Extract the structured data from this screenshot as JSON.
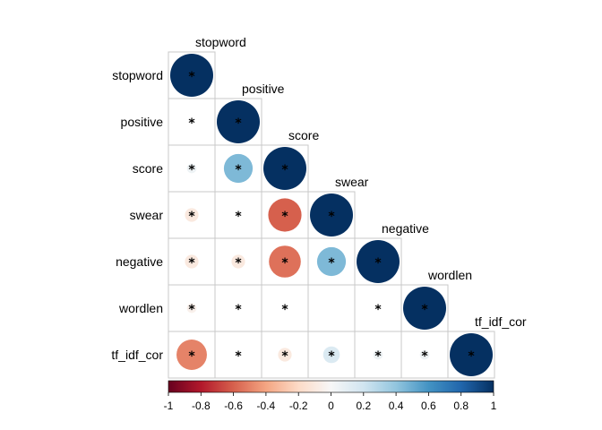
{
  "chart_data": {
    "type": "heatmap",
    "subtype": "correlation-matrix-lower-circles",
    "variables": [
      "stopword",
      "positive",
      "score",
      "swear",
      "negative",
      "wordlen",
      "tf_idf_cor"
    ],
    "matrix": [
      [
        1.0
      ],
      [
        0.0,
        1.0
      ],
      [
        0.05,
        0.45,
        1.0
      ],
      [
        -0.1,
        0.0,
        -0.6,
        1.0
      ],
      [
        -0.1,
        -0.1,
        -0.55,
        0.45,
        1.0
      ],
      [
        -0.05,
        0.0,
        0.0,
        0.0,
        0.0,
        1.0
      ],
      [
        -0.5,
        0.0,
        -0.1,
        0.15,
        0.05,
        0.05,
        1.0
      ]
    ],
    "significance_marker": "*",
    "significant": [
      [
        true
      ],
      [
        true,
        true
      ],
      [
        true,
        true,
        true
      ],
      [
        true,
        true,
        true,
        true
      ],
      [
        true,
        true,
        true,
        true,
        true
      ],
      [
        true,
        true,
        true,
        false,
        true,
        true
      ],
      [
        true,
        true,
        true,
        true,
        true,
        true,
        true
      ]
    ],
    "colorbar": {
      "range": [
        -1,
        1
      ],
      "ticks": [
        "-1",
        "-0.8",
        "-0.6",
        "-0.4",
        "-0.2",
        "0",
        "0.2",
        "0.4",
        "0.6",
        "0.8",
        "1"
      ]
    },
    "colors": {
      "negative_end": "#67001f",
      "mid_negative": "#d6604d",
      "neutral": "#f7f7f7",
      "mid_positive": "#4393c3",
      "positive_end": "#053061",
      "grid": "#c8c8c8"
    }
  }
}
